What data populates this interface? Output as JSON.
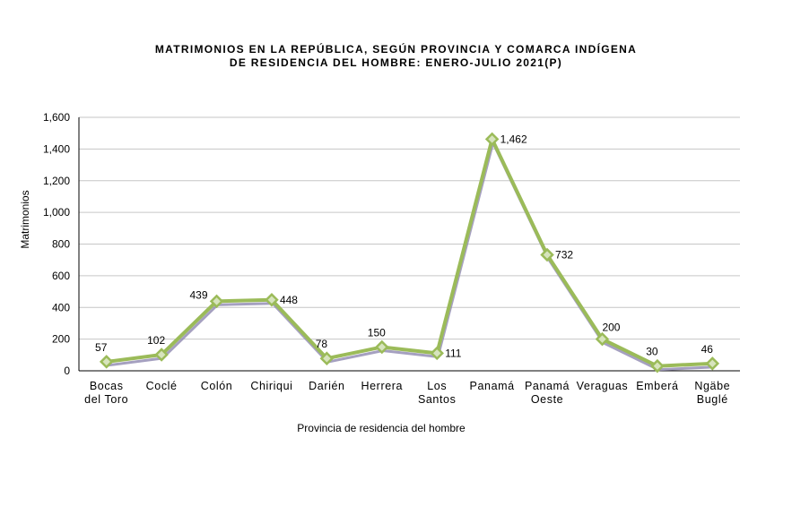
{
  "chart_data": {
    "type": "line",
    "title_line1": "MATRIMONIOS  EN LA REPÚBLICA, SEGÚN PROVINCIA Y COMARCA INDÍGENA",
    "title_line2": "DE RESIDENCIA DEL HOMBRE: ENERO-JULIO 2021(P)",
    "xlabel": "Provincia de residencia del hombre",
    "ylabel": "Matrimonios",
    "ylim": [
      0,
      1600
    ],
    "yticks": [
      "0",
      "200",
      "400",
      "600",
      "800",
      "1,000",
      "1,200",
      "1,400",
      "1,600"
    ],
    "grid": true,
    "categories": [
      [
        "Bocas",
        "del Toro"
      ],
      [
        "Coclé"
      ],
      [
        "Colón"
      ],
      [
        "Chiriqui"
      ],
      [
        "Darién"
      ],
      [
        "Herrera"
      ],
      [
        "Los",
        "Santos"
      ],
      [
        "Panamá"
      ],
      [
        "Panamá",
        "Oeste"
      ],
      [
        "Veraguas"
      ],
      [
        "Emberá"
      ],
      [
        "Ngäbe",
        "Buglé"
      ]
    ],
    "values": [
      57,
      102,
      439,
      448,
      78,
      150,
      111,
      1462,
      732,
      200,
      30,
      46
    ],
    "labels": [
      "57",
      "102",
      "439",
      "448",
      "78",
      "150",
      "111",
      "1,462",
      "732",
      "200",
      "30",
      "46"
    ],
    "colors": {
      "line": "#9bbb59",
      "marker_fill": "#d7e4bd",
      "shadow": "#8e88b0",
      "grid": "#c6c6c6"
    }
  }
}
